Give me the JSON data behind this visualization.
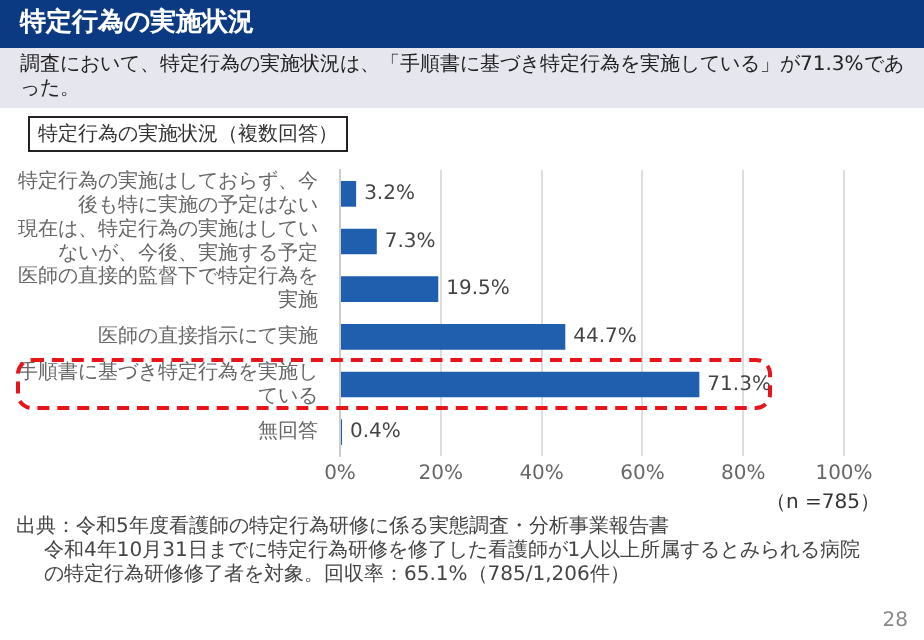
{
  "chart_data": {
    "type": "bar",
    "orientation": "horizontal",
    "title": "特定行為の実施状況",
    "subtitle": "調査において、特定行為の実施状況は、「手順書に基づき特定行為を実施している」が71.3%であった。",
    "categories": [
      "特定行為の実施はしておらず、今後も特に実施の予定はない",
      "現在は、特定行為の実施はしていないが、今後、実施する予定",
      "医師の直接的監督下で特定行為を実施",
      "医師の直接指示にて実施",
      "手順書に基づき特定行為を実施している",
      "無回答"
    ],
    "values": [
      3.2,
      7.3,
      19.5,
      44.7,
      71.3,
      0.4
    ],
    "value_labels": [
      "3.2%",
      "7.3%",
      "19.5%",
      "44.7%",
      "71.3%",
      "0.4%"
    ],
    "color": "#1f5fae",
    "xlim": [
      0,
      100
    ],
    "xticks": [
      {
        "value": 0,
        "label": "0%"
      },
      {
        "value": 20,
        "label": "20%"
      },
      {
        "value": 40,
        "label": "40%"
      },
      {
        "value": 60,
        "label": "60%"
      },
      {
        "value": 80,
        "label": "80%"
      },
      {
        "value": 100,
        "label": "100%"
      }
    ],
    "grid": "x",
    "legend": false,
    "annotations": [
      "特定行為の実施状況（複数回答）",
      "（n =785）",
      "出典：令和5年度看護師の特定行為研修に係る実態調査・分析事業報告書",
      "令和4年10月31日までに特定行為研修を修了した看護師が1人以上所属するとみられる病院の特定行為研修修了者を対象。回収率：65.1%（785/1,206件）",
      "28"
    ]
  }
}
